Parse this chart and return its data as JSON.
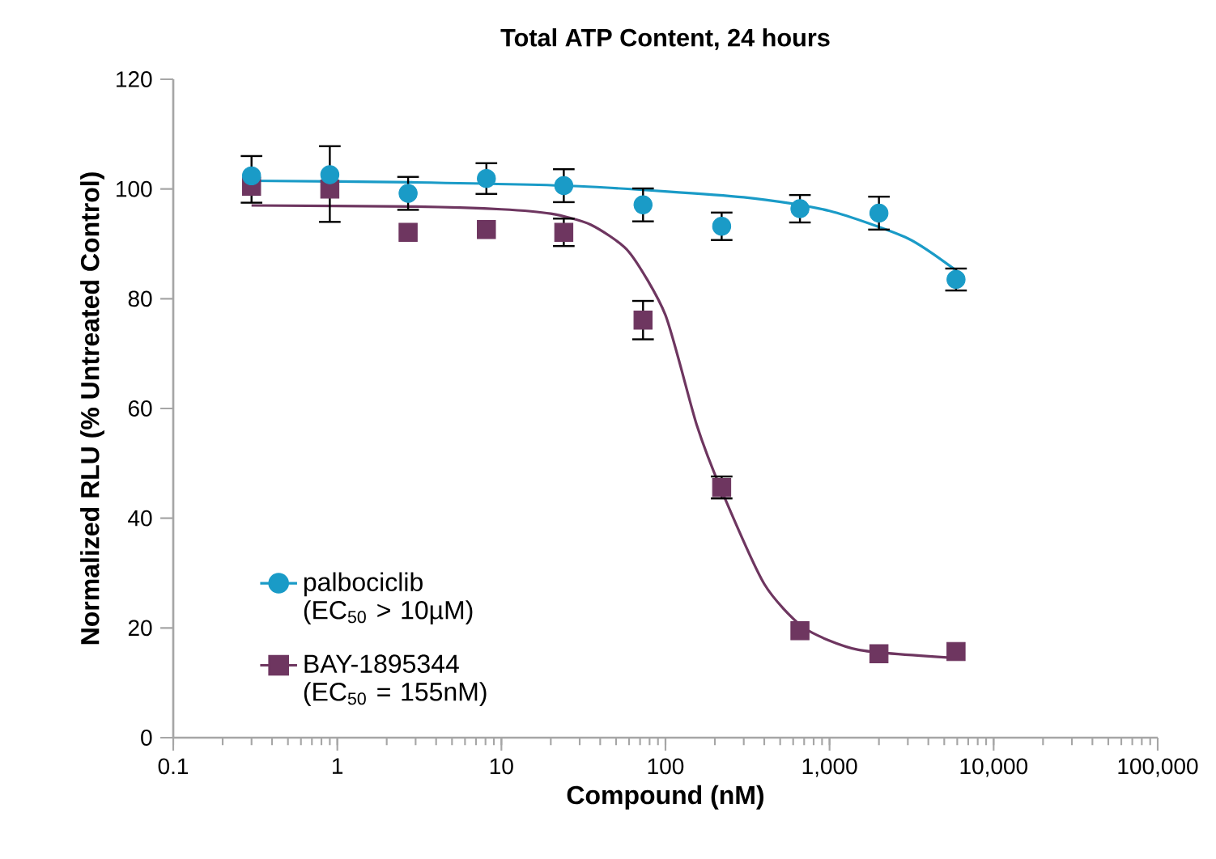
{
  "chart_data": {
    "type": "scatter",
    "title": "Total ATP Content, 24 hours",
    "xlabel": "Compound (nM)",
    "ylabel": "Normalized RLU (% Untreated Control)",
    "log": "x",
    "xlim": [
      0.1,
      100000
    ],
    "ylim": [
      0,
      120
    ],
    "xticks": [
      0.1,
      1,
      10,
      100,
      {
        "value": 1000,
        "label": "1,000"
      },
      {
        "value": 10000,
        "label": "10,000"
      },
      {
        "value": 100000,
        "label": "100,000"
      }
    ],
    "yticks": [
      0,
      20,
      40,
      60,
      80,
      100,
      120
    ],
    "legend": "bottom left",
    "x": [
      0.3,
      0.9,
      2.7,
      8.1,
      24,
      73,
      220,
      660,
      2000,
      5900
    ],
    "series": [
      {
        "type": "line",
        "color": "#6e3660",
        "x": [
          0.3,
          3,
          10,
          20,
          35,
          60,
          100,
          155,
          220,
          400,
          700,
          1500,
          6000
        ],
        "values": [
          97,
          96.8,
          96.3,
          95.5,
          93.5,
          88.5,
          77,
          57,
          45,
          28,
          20,
          16,
          14.5
        ]
      },
      {
        "name": "BAY-1895344 (EC$_{50}$ = 155nM)",
        "color": "#6e3660",
        "marker": "square",
        "values": [
          100.5,
          100,
          92.1,
          92.6,
          92.1,
          76.1,
          45.6,
          19.5,
          15.3,
          15.7
        ],
        "errors": [
          null,
          null,
          null,
          null,
          2.5,
          3.5,
          2,
          null,
          null,
          null
        ]
      },
      {
        "type": "line",
        "color": "#1a9bc7",
        "x": [
          0.3,
          3,
          30,
          300,
          1000,
          3000,
          6000
        ],
        "values": [
          101.5,
          101.2,
          100.5,
          98.5,
          96,
          91,
          85
        ]
      },
      {
        "name": "palbociclib (EC$_{50}$ > 10µM)",
        "color": "#1a9bc7",
        "marker": "circle",
        "values": [
          102.4,
          102.6,
          99.2,
          101.9,
          100.6,
          97.1,
          93.2,
          96.4,
          95.6,
          83.5
        ],
        "errors": [
          [
            97.5,
            106
          ],
          [
            94,
            107.8
          ],
          3,
          2.8,
          3,
          3,
          2.5,
          2.5,
          3,
          2
        ]
      }
    ]
  }
}
